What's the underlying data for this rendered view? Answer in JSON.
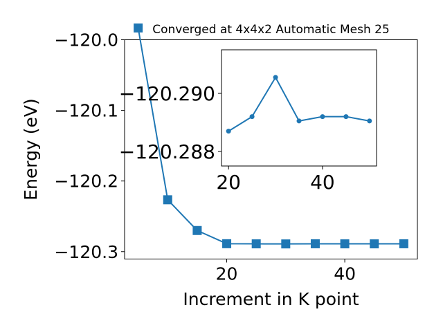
{
  "chart_data": [
    {
      "type": "line",
      "title": "Converged at 4x4x2 Automatic Mesh 25",
      "xlabel": "Increment in K point",
      "ylabel": "Energy (eV)",
      "xlim": [
        2.7,
        52.3
      ],
      "ylim": [
        -120.3105,
        -120.0
      ],
      "x_ticks": [
        20,
        40
      ],
      "x_tick_labels": [
        "20",
        "40"
      ],
      "y_ticks": [
        -120.0,
        -120.1,
        -120.2,
        -120.3
      ],
      "y_tick_labels": [
        "−120.0",
        "−120.1",
        "−120.2",
        "−120.3"
      ],
      "x": [
        5,
        10,
        15,
        20,
        25,
        30,
        35,
        40,
        45,
        50
      ],
      "series": [
        {
          "values": [
            -119.9833,
            -120.2266,
            -120.2701,
            -120.2888,
            -120.289,
            -120.2891,
            -120.2889,
            -120.289,
            -120.289,
            -120.2889
          ],
          "color": "#1f77b4",
          "marker": "square"
        }
      ],
      "grid": false
    },
    {
      "type": "line",
      "title": "",
      "xlabel": "",
      "ylabel": "",
      "xlim": [
        18.5,
        51.5
      ],
      "ylim": [
        -120.2875,
        -120.2915
      ],
      "x_ticks": [
        20,
        40
      ],
      "x_tick_labels": [
        "20",
        "40"
      ],
      "y_ticks": [
        -120.29,
        -120.288
      ],
      "y_tick_labels": [
        "−120.290",
        "−120.288"
      ],
      "x": [
        20,
        25,
        30,
        35,
        40,
        45,
        50
      ],
      "series": [
        {
          "values": [
            -120.2887,
            -120.2892,
            -120.29055,
            -120.28905,
            -120.2892,
            -120.2892,
            -120.28905
          ],
          "color": "#1f77b4",
          "marker": "circle"
        }
      ],
      "grid": false
    }
  ]
}
